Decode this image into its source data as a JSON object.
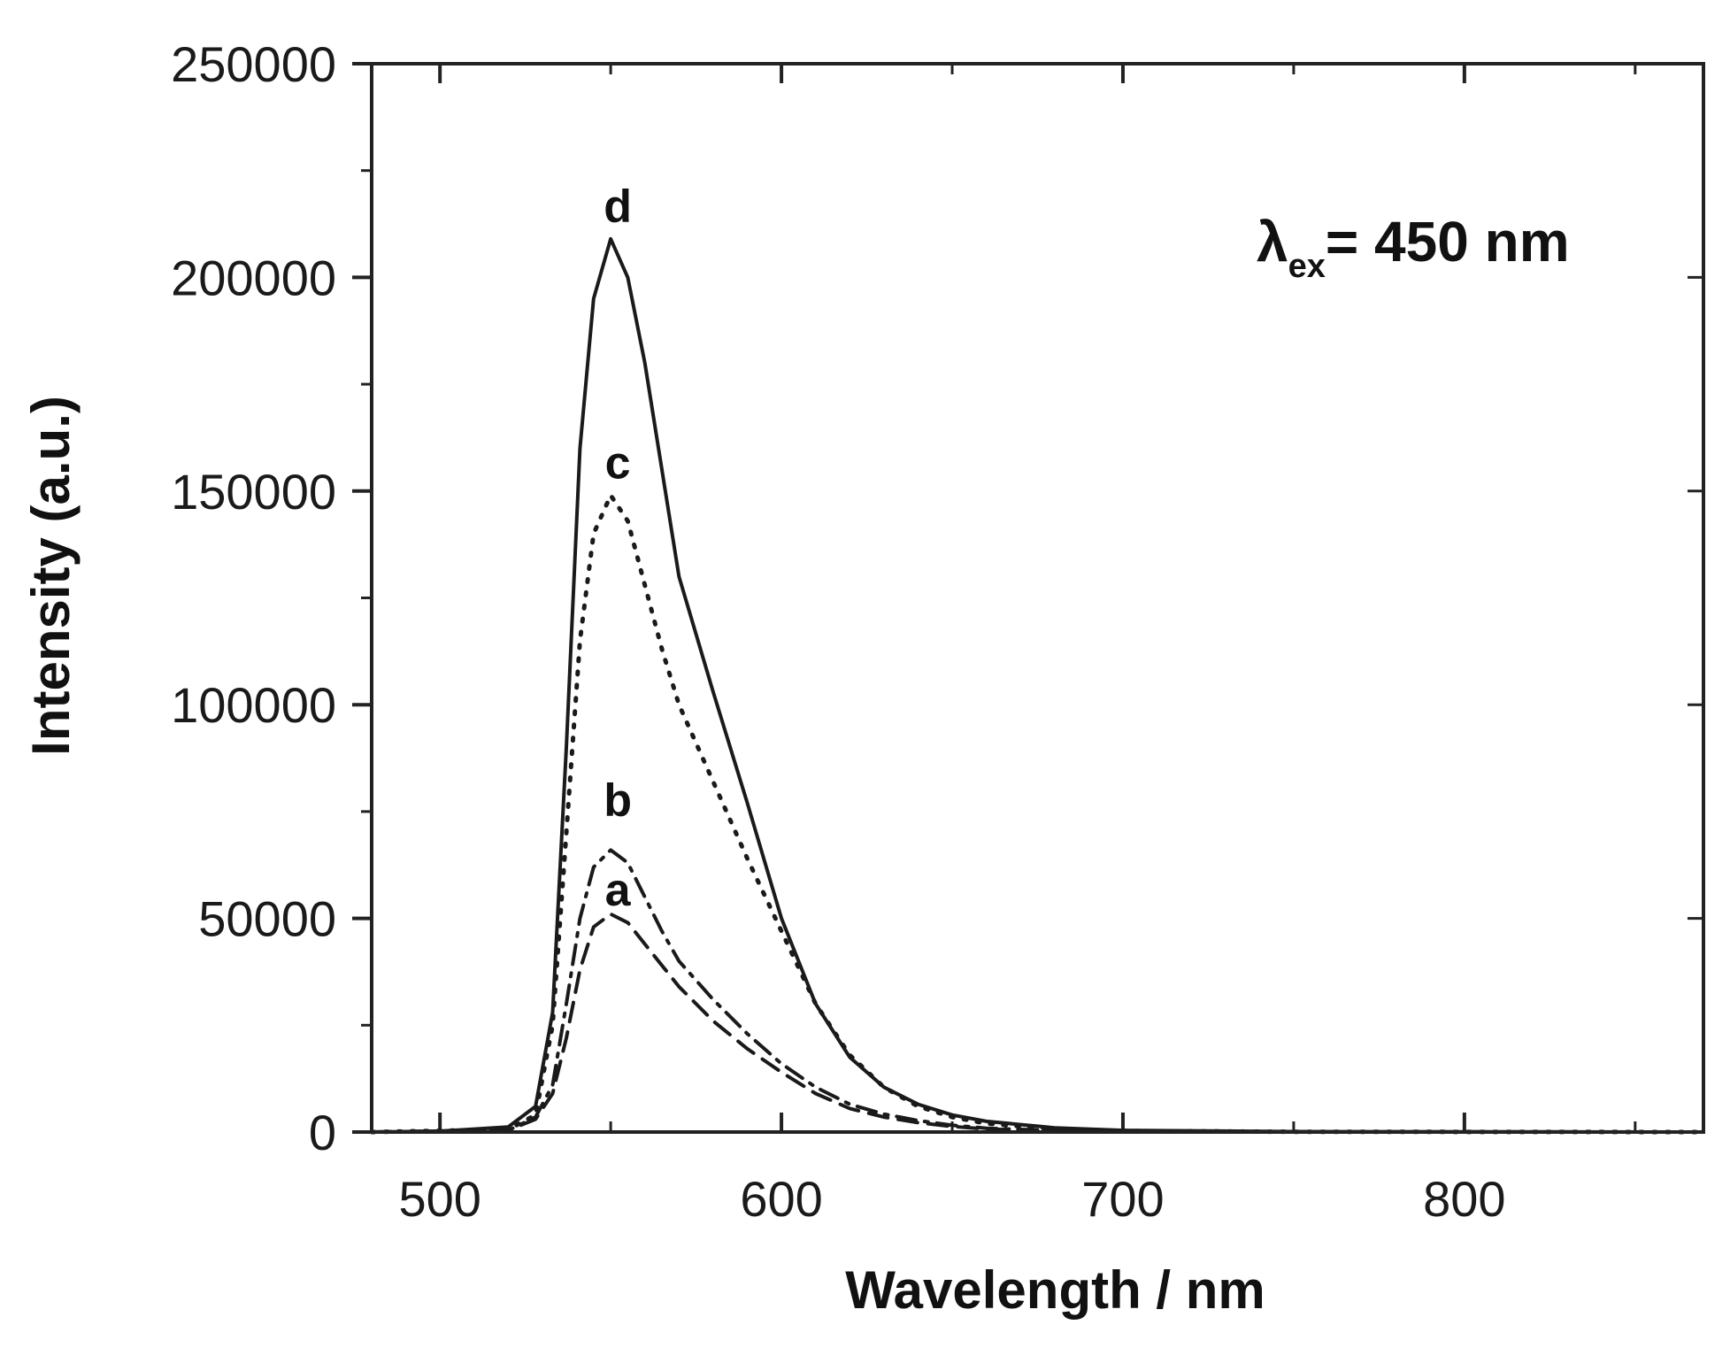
{
  "chart_data": {
    "type": "line",
    "xlabel": "Wavelength / nm",
    "ylabel": "Intensity  (a.u.)",
    "xlim": [
      480,
      870
    ],
    "ylim": [
      0,
      250000
    ],
    "x_ticks": [
      500,
      600,
      700,
      800
    ],
    "x_minor_ticks": [
      550,
      650,
      750,
      850
    ],
    "y_ticks": [
      0,
      50000,
      100000,
      150000,
      200000,
      250000
    ],
    "y_minor_ticks": [
      25000,
      75000,
      125000,
      175000,
      225000
    ],
    "annotation": {
      "symbol": "λ",
      "subscript": "ex",
      "text": "= 450 nm"
    },
    "series": [
      {
        "name": "a",
        "style": "dashed",
        "label_at": [
          550,
          53000
        ],
        "points": [
          [
            480,
            0
          ],
          [
            520,
            400
          ],
          [
            528,
            3000
          ],
          [
            533,
            9000
          ],
          [
            537,
            22000
          ],
          [
            541,
            38000
          ],
          [
            545,
            48000
          ],
          [
            550,
            51000
          ],
          [
            555,
            49000
          ],
          [
            560,
            44000
          ],
          [
            565,
            39000
          ],
          [
            570,
            34000
          ],
          [
            580,
            26000
          ],
          [
            590,
            19500
          ],
          [
            600,
            14000
          ],
          [
            610,
            9000
          ],
          [
            620,
            5500
          ],
          [
            630,
            3500
          ],
          [
            640,
            2200
          ],
          [
            650,
            1300
          ],
          [
            660,
            700
          ],
          [
            680,
            300
          ],
          [
            700,
            120
          ],
          [
            750,
            40
          ],
          [
            870,
            0
          ]
        ]
      },
      {
        "name": "b",
        "style": "dash-dot",
        "label_at": [
          550,
          74000
        ],
        "points": [
          [
            480,
            0
          ],
          [
            520,
            400
          ],
          [
            528,
            3500
          ],
          [
            533,
            11000
          ],
          [
            537,
            30000
          ],
          [
            541,
            50000
          ],
          [
            545,
            62000
          ],
          [
            550,
            66000
          ],
          [
            555,
            63000
          ],
          [
            560,
            55000
          ],
          [
            565,
            47000
          ],
          [
            570,
            40000
          ],
          [
            580,
            31000
          ],
          [
            590,
            23000
          ],
          [
            600,
            16000
          ],
          [
            610,
            10500
          ],
          [
            620,
            6500
          ],
          [
            630,
            4200
          ],
          [
            640,
            2700
          ],
          [
            650,
            1600
          ],
          [
            660,
            900
          ],
          [
            680,
            350
          ],
          [
            700,
            150
          ],
          [
            750,
            50
          ],
          [
            870,
            0
          ]
        ]
      },
      {
        "name": "c",
        "style": "dotted",
        "label_at": [
          550,
          153000
        ],
        "points": [
          [
            480,
            0
          ],
          [
            520,
            600
          ],
          [
            528,
            4000
          ],
          [
            533,
            25000
          ],
          [
            537,
            70000
          ],
          [
            541,
            115000
          ],
          [
            545,
            140000
          ],
          [
            550,
            149000
          ],
          [
            555,
            143000
          ],
          [
            560,
            128000
          ],
          [
            565,
            113000
          ],
          [
            570,
            100000
          ],
          [
            580,
            82000
          ],
          [
            590,
            64000
          ],
          [
            600,
            47000
          ],
          [
            610,
            30000
          ],
          [
            620,
            18000
          ],
          [
            630,
            10500
          ],
          [
            640,
            6000
          ],
          [
            650,
            3500
          ],
          [
            660,
            2000
          ],
          [
            680,
            700
          ],
          [
            700,
            250
          ],
          [
            750,
            60
          ],
          [
            870,
            0
          ]
        ]
      },
      {
        "name": "d",
        "style": "solid",
        "label_at": [
          550,
          213000
        ],
        "points": [
          [
            480,
            0
          ],
          [
            500,
            200
          ],
          [
            520,
            1200
          ],
          [
            528,
            6000
          ],
          [
            533,
            28000
          ],
          [
            537,
            90000
          ],
          [
            541,
            160000
          ],
          [
            545,
            195000
          ],
          [
            550,
            209000
          ],
          [
            555,
            200000
          ],
          [
            560,
            180000
          ],
          [
            565,
            155000
          ],
          [
            570,
            130000
          ],
          [
            580,
            103000
          ],
          [
            590,
            77000
          ],
          [
            600,
            50000
          ],
          [
            610,
            30000
          ],
          [
            620,
            17500
          ],
          [
            630,
            10500
          ],
          [
            640,
            6500
          ],
          [
            650,
            4000
          ],
          [
            660,
            2500
          ],
          [
            680,
            1000
          ],
          [
            700,
            400
          ],
          [
            750,
            100
          ],
          [
            870,
            0
          ]
        ]
      }
    ]
  }
}
